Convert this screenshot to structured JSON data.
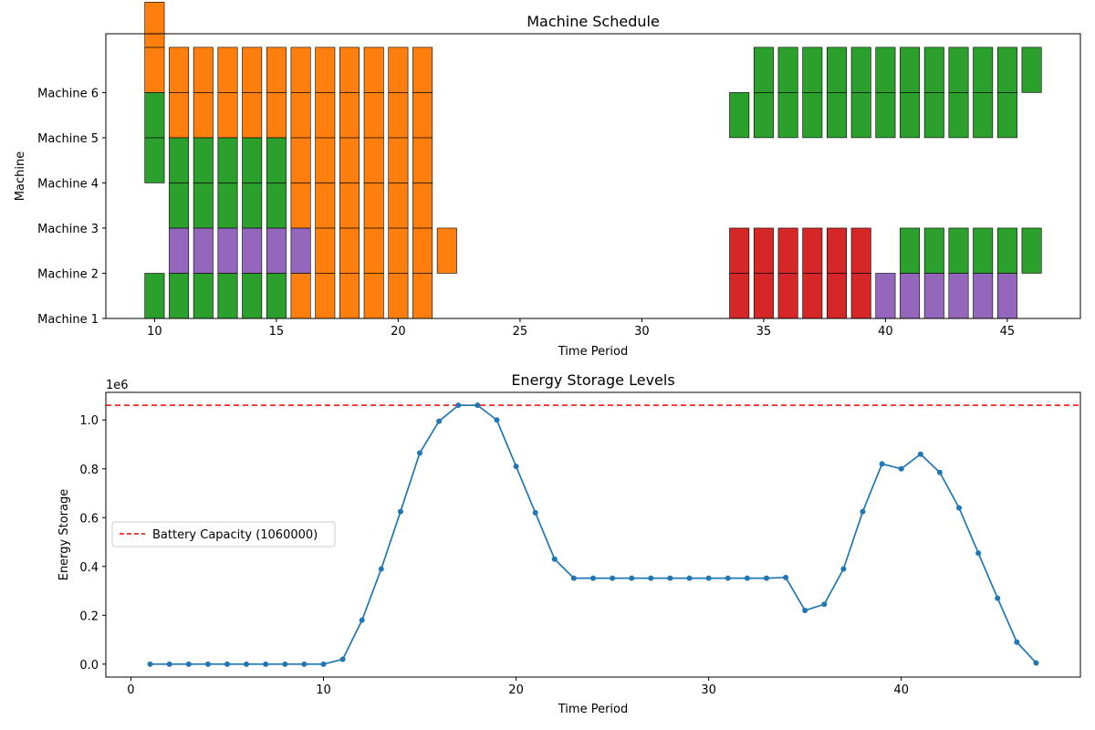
{
  "chart_data": [
    {
      "type": "gantt",
      "title": "Machine Schedule",
      "xlabel": "Time Period",
      "ylabel": "Machine",
      "xlim": [
        8,
        48
      ],
      "xticks": [
        10,
        15,
        20,
        25,
        30,
        35,
        40,
        45
      ],
      "ylim": [
        0,
        6.3
      ],
      "yticks": [
        {
          "value": 0,
          "label": "Machine 1"
        },
        {
          "value": 1,
          "label": "Machine 2"
        },
        {
          "value": 2,
          "label": "Machine 3"
        },
        {
          "value": 3,
          "label": "Machine 4"
        },
        {
          "value": 4,
          "label": "Machine 5"
        },
        {
          "value": 5,
          "label": "Machine 6"
        }
      ],
      "colors": {
        "orange": "#ff7f0e",
        "green": "#2ca02c",
        "purple": "#9467bd",
        "red": "#d62728"
      },
      "bar_width": 0.8,
      "segments": [
        {
          "t": 10,
          "from": 0,
          "to": 1,
          "color": "green"
        },
        {
          "t": 10,
          "from": 3,
          "to": 4,
          "color": "green"
        },
        {
          "t": 10,
          "from": 4,
          "to": 5,
          "color": "green"
        },
        {
          "t": 10,
          "from": 5,
          "to": 6,
          "color": "orange"
        },
        {
          "t": 10,
          "from": 6,
          "to": 7,
          "color": "orange"
        },
        {
          "t": 11,
          "from": 0,
          "to": 1,
          "color": "green"
        },
        {
          "t": 11,
          "from": 1,
          "to": 2,
          "color": "purple"
        },
        {
          "t": 11,
          "from": 2,
          "to": 3,
          "color": "green"
        },
        {
          "t": 11,
          "from": 3,
          "to": 4,
          "color": "green"
        },
        {
          "t": 11,
          "from": 4,
          "to": 5,
          "color": "orange"
        },
        {
          "t": 11,
          "from": 5,
          "to": 6,
          "color": "orange"
        },
        {
          "t": 12,
          "from": 0,
          "to": 1,
          "color": "green"
        },
        {
          "t": 12,
          "from": 1,
          "to": 2,
          "color": "purple"
        },
        {
          "t": 12,
          "from": 2,
          "to": 3,
          "color": "green"
        },
        {
          "t": 12,
          "from": 3,
          "to": 4,
          "color": "green"
        },
        {
          "t": 12,
          "from": 4,
          "to": 5,
          "color": "orange"
        },
        {
          "t": 12,
          "from": 5,
          "to": 6,
          "color": "orange"
        },
        {
          "t": 13,
          "from": 0,
          "to": 1,
          "color": "green"
        },
        {
          "t": 13,
          "from": 1,
          "to": 2,
          "color": "purple"
        },
        {
          "t": 13,
          "from": 2,
          "to": 3,
          "color": "green"
        },
        {
          "t": 13,
          "from": 3,
          "to": 4,
          "color": "green"
        },
        {
          "t": 13,
          "from": 4,
          "to": 5,
          "color": "orange"
        },
        {
          "t": 13,
          "from": 5,
          "to": 6,
          "color": "orange"
        },
        {
          "t": 14,
          "from": 0,
          "to": 1,
          "color": "green"
        },
        {
          "t": 14,
          "from": 1,
          "to": 2,
          "color": "purple"
        },
        {
          "t": 14,
          "from": 2,
          "to": 3,
          "color": "green"
        },
        {
          "t": 14,
          "from": 3,
          "to": 4,
          "color": "green"
        },
        {
          "t": 14,
          "from": 4,
          "to": 5,
          "color": "orange"
        },
        {
          "t": 14,
          "from": 5,
          "to": 6,
          "color": "orange"
        },
        {
          "t": 15,
          "from": 0,
          "to": 1,
          "color": "green"
        },
        {
          "t": 15,
          "from": 1,
          "to": 2,
          "color": "purple"
        },
        {
          "t": 15,
          "from": 2,
          "to": 3,
          "color": "green"
        },
        {
          "t": 15,
          "from": 3,
          "to": 4,
          "color": "green"
        },
        {
          "t": 15,
          "from": 4,
          "to": 5,
          "color": "orange"
        },
        {
          "t": 15,
          "from": 5,
          "to": 6,
          "color": "orange"
        },
        {
          "t": 16,
          "from": 0,
          "to": 1,
          "color": "orange"
        },
        {
          "t": 16,
          "from": 1,
          "to": 2,
          "color": "purple"
        },
        {
          "t": 16,
          "from": 2,
          "to": 3,
          "color": "orange"
        },
        {
          "t": 16,
          "from": 3,
          "to": 4,
          "color": "orange"
        },
        {
          "t": 16,
          "from": 4,
          "to": 5,
          "color": "orange"
        },
        {
          "t": 16,
          "from": 5,
          "to": 6,
          "color": "orange"
        },
        {
          "t": 17,
          "from": 0,
          "to": 1,
          "color": "orange"
        },
        {
          "t": 17,
          "from": 1,
          "to": 2,
          "color": "orange"
        },
        {
          "t": 17,
          "from": 2,
          "to": 3,
          "color": "orange"
        },
        {
          "t": 17,
          "from": 3,
          "to": 4,
          "color": "orange"
        },
        {
          "t": 17,
          "from": 4,
          "to": 5,
          "color": "orange"
        },
        {
          "t": 17,
          "from": 5,
          "to": 6,
          "color": "orange"
        },
        {
          "t": 18,
          "from": 0,
          "to": 1,
          "color": "orange"
        },
        {
          "t": 18,
          "from": 1,
          "to": 2,
          "color": "orange"
        },
        {
          "t": 18,
          "from": 2,
          "to": 3,
          "color": "orange"
        },
        {
          "t": 18,
          "from": 3,
          "to": 4,
          "color": "orange"
        },
        {
          "t": 18,
          "from": 4,
          "to": 5,
          "color": "orange"
        },
        {
          "t": 18,
          "from": 5,
          "to": 6,
          "color": "orange"
        },
        {
          "t": 19,
          "from": 0,
          "to": 1,
          "color": "orange"
        },
        {
          "t": 19,
          "from": 1,
          "to": 2,
          "color": "orange"
        },
        {
          "t": 19,
          "from": 2,
          "to": 3,
          "color": "orange"
        },
        {
          "t": 19,
          "from": 3,
          "to": 4,
          "color": "orange"
        },
        {
          "t": 19,
          "from": 4,
          "to": 5,
          "color": "orange"
        },
        {
          "t": 19,
          "from": 5,
          "to": 6,
          "color": "orange"
        },
        {
          "t": 20,
          "from": 0,
          "to": 1,
          "color": "orange"
        },
        {
          "t": 20,
          "from": 1,
          "to": 2,
          "color": "orange"
        },
        {
          "t": 20,
          "from": 2,
          "to": 3,
          "color": "orange"
        },
        {
          "t": 20,
          "from": 3,
          "to": 4,
          "color": "orange"
        },
        {
          "t": 20,
          "from": 4,
          "to": 5,
          "color": "orange"
        },
        {
          "t": 20,
          "from": 5,
          "to": 6,
          "color": "orange"
        },
        {
          "t": 21,
          "from": 0,
          "to": 1,
          "color": "orange"
        },
        {
          "t": 21,
          "from": 1,
          "to": 2,
          "color": "orange"
        },
        {
          "t": 21,
          "from": 2,
          "to": 3,
          "color": "orange"
        },
        {
          "t": 21,
          "from": 3,
          "to": 4,
          "color": "orange"
        },
        {
          "t": 21,
          "from": 4,
          "to": 5,
          "color": "orange"
        },
        {
          "t": 21,
          "from": 5,
          "to": 6,
          "color": "orange"
        },
        {
          "t": 22,
          "from": 1,
          "to": 2,
          "color": "orange"
        },
        {
          "t": 34,
          "from": 0,
          "to": 1,
          "color": "red"
        },
        {
          "t": 34,
          "from": 1,
          "to": 2,
          "color": "red"
        },
        {
          "t": 34,
          "from": 4,
          "to": 5,
          "color": "green"
        },
        {
          "t": 35,
          "from": 0,
          "to": 1,
          "color": "red"
        },
        {
          "t": 35,
          "from": 1,
          "to": 2,
          "color": "red"
        },
        {
          "t": 35,
          "from": 4,
          "to": 5,
          "color": "green"
        },
        {
          "t": 35,
          "from": 5,
          "to": 6,
          "color": "green"
        },
        {
          "t": 36,
          "from": 0,
          "to": 1,
          "color": "red"
        },
        {
          "t": 36,
          "from": 1,
          "to": 2,
          "color": "red"
        },
        {
          "t": 36,
          "from": 4,
          "to": 5,
          "color": "green"
        },
        {
          "t": 36,
          "from": 5,
          "to": 6,
          "color": "green"
        },
        {
          "t": 37,
          "from": 0,
          "to": 1,
          "color": "red"
        },
        {
          "t": 37,
          "from": 1,
          "to": 2,
          "color": "red"
        },
        {
          "t": 37,
          "from": 4,
          "to": 5,
          "color": "green"
        },
        {
          "t": 37,
          "from": 5,
          "to": 6,
          "color": "green"
        },
        {
          "t": 38,
          "from": 0,
          "to": 1,
          "color": "red"
        },
        {
          "t": 38,
          "from": 1,
          "to": 2,
          "color": "red"
        },
        {
          "t": 38,
          "from": 4,
          "to": 5,
          "color": "green"
        },
        {
          "t": 38,
          "from": 5,
          "to": 6,
          "color": "green"
        },
        {
          "t": 39,
          "from": 0,
          "to": 1,
          "color": "red"
        },
        {
          "t": 39,
          "from": 1,
          "to": 2,
          "color": "red"
        },
        {
          "t": 39,
          "from": 4,
          "to": 5,
          "color": "green"
        },
        {
          "t": 39,
          "from": 5,
          "to": 6,
          "color": "green"
        },
        {
          "t": 40,
          "from": 0,
          "to": 1,
          "color": "purple"
        },
        {
          "t": 40,
          "from": 4,
          "to": 5,
          "color": "green"
        },
        {
          "t": 40,
          "from": 5,
          "to": 6,
          "color": "green"
        },
        {
          "t": 41,
          "from": 0,
          "to": 1,
          "color": "purple"
        },
        {
          "t": 41,
          "from": 1,
          "to": 2,
          "color": "green"
        },
        {
          "t": 41,
          "from": 4,
          "to": 5,
          "color": "green"
        },
        {
          "t": 41,
          "from": 5,
          "to": 6,
          "color": "green"
        },
        {
          "t": 42,
          "from": 0,
          "to": 1,
          "color": "purple"
        },
        {
          "t": 42,
          "from": 1,
          "to": 2,
          "color": "green"
        },
        {
          "t": 42,
          "from": 4,
          "to": 5,
          "color": "green"
        },
        {
          "t": 42,
          "from": 5,
          "to": 6,
          "color": "green"
        },
        {
          "t": 43,
          "from": 0,
          "to": 1,
          "color": "purple"
        },
        {
          "t": 43,
          "from": 1,
          "to": 2,
          "color": "green"
        },
        {
          "t": 43,
          "from": 4,
          "to": 5,
          "color": "green"
        },
        {
          "t": 43,
          "from": 5,
          "to": 6,
          "color": "green"
        },
        {
          "t": 44,
          "from": 0,
          "to": 1,
          "color": "purple"
        },
        {
          "t": 44,
          "from": 1,
          "to": 2,
          "color": "green"
        },
        {
          "t": 44,
          "from": 4,
          "to": 5,
          "color": "green"
        },
        {
          "t": 44,
          "from": 5,
          "to": 6,
          "color": "green"
        },
        {
          "t": 45,
          "from": 0,
          "to": 1,
          "color": "purple"
        },
        {
          "t": 45,
          "from": 1,
          "to": 2,
          "color": "green"
        },
        {
          "t": 45,
          "from": 4,
          "to": 5,
          "color": "green"
        },
        {
          "t": 45,
          "from": 5,
          "to": 6,
          "color": "green"
        },
        {
          "t": 46,
          "from": 1,
          "to": 2,
          "color": "green"
        },
        {
          "t": 46,
          "from": 5,
          "to": 6,
          "color": "green"
        }
      ]
    },
    {
      "type": "line",
      "title": "Energy Storage Levels",
      "xlabel": "Time Period",
      "ylabel": "Energy Storage",
      "offset_text": "1e6",
      "xlim": [
        -1.3,
        49.3
      ],
      "ylim": [
        -0.053,
        1.113
      ],
      "xticks": [
        0,
        10,
        20,
        30,
        40
      ],
      "yticks": [
        0.0,
        0.2,
        0.4,
        0.6,
        0.8,
        1.0
      ],
      "ytick_labels": [
        "0.0",
        "0.2",
        "0.4",
        "0.6",
        "0.8",
        "1.0"
      ],
      "line_color": "#1f77b4",
      "series": [
        {
          "x": [
            1,
            2,
            3,
            4,
            5,
            6,
            7,
            8,
            9,
            10,
            11,
            12,
            13,
            14,
            15,
            16,
            17,
            18,
            19,
            20,
            21,
            22,
            23,
            24,
            25,
            26,
            27,
            28,
            29,
            30,
            31,
            32,
            33,
            34,
            35,
            36,
            37,
            38,
            39,
            40,
            41,
            42,
            43,
            44,
            45,
            46,
            47
          ],
          "values": [
            0,
            0,
            0,
            0,
            0,
            0,
            0,
            0,
            0,
            0,
            0.02,
            0.18,
            0.39,
            0.625,
            0.865,
            0.995,
            1.06,
            1.06,
            1.0,
            0.81,
            0.62,
            0.43,
            0.352,
            0.352,
            0.352,
            0.352,
            0.352,
            0.352,
            0.352,
            0.352,
            0.352,
            0.352,
            0.352,
            0.355,
            0.22,
            0.245,
            0.39,
            0.625,
            0.82,
            0.8,
            0.86,
            0.785,
            0.64,
            0.455,
            0.27,
            0.09,
            0.005
          ]
        }
      ],
      "reference_line": {
        "y": 1.06,
        "color": "#ff0000",
        "label": "Battery Capacity (1060000)"
      },
      "legend_position": "center-left"
    }
  ]
}
